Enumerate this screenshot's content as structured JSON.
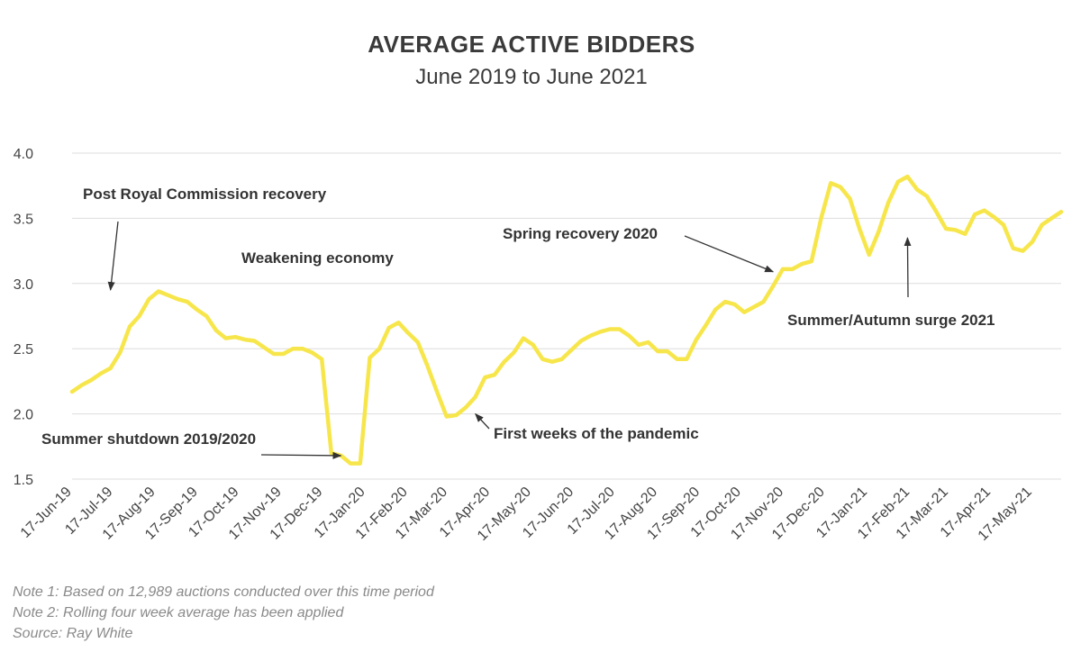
{
  "title": "AVERAGE ACTIVE BIDDERS",
  "subtitle": "June 2019 to June 2021",
  "notes": [
    "Note 1: Based on 12,989 auctions conducted over this time period",
    "Note 2: Rolling four week average has been applied",
    "Source: Ray White"
  ],
  "chart_data": {
    "type": "line",
    "title": "AVERAGE ACTIVE BIDDERS",
    "subtitle": "June 2019 to June 2021",
    "xlabel": "",
    "ylabel": "",
    "ylim": [
      1.5,
      4.0
    ],
    "yticks": [
      "1.5",
      "2.0",
      "2.5",
      "3.0",
      "3.5",
      "4.0"
    ],
    "grid": "horizontal",
    "legend": "none",
    "line_color": "#f7e64b",
    "x_ticks": [
      "17-Jun-19",
      "17-Jul-19",
      "17-Aug-19",
      "17-Sep-19",
      "17-Oct-19",
      "17-Nov-19",
      "17-Dec-19",
      "17-Jan-20",
      "17-Feb-20",
      "17-Mar-20",
      "17-Apr-20",
      "17-May-20",
      "17-Jun-20",
      "17-Jul-20",
      "17-Aug-20",
      "17-Sep-20",
      "17-Oct-20",
      "17-Nov-20",
      "17-Dec-20",
      "17-Jan-21",
      "17-Feb-21",
      "17-Mar-21",
      "17-Apr-21",
      "17-May-21"
    ],
    "x": [
      "2019-06-17",
      "2019-06-24",
      "2019-07-01",
      "2019-07-08",
      "2019-07-15",
      "2019-07-22",
      "2019-07-29",
      "2019-08-05",
      "2019-08-12",
      "2019-08-19",
      "2019-08-26",
      "2019-09-02",
      "2019-09-09",
      "2019-09-16",
      "2019-09-23",
      "2019-09-30",
      "2019-10-07",
      "2019-10-14",
      "2019-10-21",
      "2019-10-28",
      "2019-11-04",
      "2019-11-11",
      "2019-11-18",
      "2019-11-25",
      "2019-12-02",
      "2019-12-09",
      "2019-12-16",
      "2019-12-23",
      "2019-12-30",
      "2020-01-06",
      "2020-01-13",
      "2020-01-20",
      "2020-01-27",
      "2020-02-03",
      "2020-02-10",
      "2020-02-17",
      "2020-02-24",
      "2020-03-02",
      "2020-03-09",
      "2020-03-16",
      "2020-03-23",
      "2020-03-30",
      "2020-04-06",
      "2020-04-13",
      "2020-04-20",
      "2020-04-27",
      "2020-05-04",
      "2020-05-11",
      "2020-05-18",
      "2020-05-25",
      "2020-06-01",
      "2020-06-08",
      "2020-06-15",
      "2020-06-22",
      "2020-06-29",
      "2020-07-06",
      "2020-07-13",
      "2020-07-20",
      "2020-07-27",
      "2020-08-03",
      "2020-08-10",
      "2020-08-17",
      "2020-08-24",
      "2020-08-31",
      "2020-09-07",
      "2020-09-14",
      "2020-09-21",
      "2020-09-28",
      "2020-10-05",
      "2020-10-12",
      "2020-10-19",
      "2020-10-26",
      "2020-11-02",
      "2020-11-09",
      "2020-11-16",
      "2020-11-23",
      "2020-11-30",
      "2020-12-07",
      "2020-12-14",
      "2020-12-21",
      "2020-12-28",
      "2021-01-04",
      "2021-01-11",
      "2021-01-18",
      "2021-01-25",
      "2021-02-01",
      "2021-02-08",
      "2021-02-15",
      "2021-02-22",
      "2021-03-01",
      "2021-03-08",
      "2021-03-15",
      "2021-03-22",
      "2021-03-29",
      "2021-04-05",
      "2021-04-12",
      "2021-04-19",
      "2021-04-26",
      "2021-05-03",
      "2021-05-10",
      "2021-05-17",
      "2021-05-24",
      "2021-05-31",
      "2021-06-07"
    ],
    "series": [
      {
        "values": [
          2.17,
          2.22,
          2.26,
          2.31,
          2.35,
          2.47,
          2.67,
          2.75,
          2.88,
          2.94,
          2.91,
          2.88,
          2.86,
          2.8,
          2.75,
          2.64,
          2.58,
          2.59,
          2.57,
          2.56,
          2.51,
          2.46,
          2.46,
          2.5,
          2.5,
          2.47,
          2.42,
          1.7,
          1.68,
          1.62,
          1.62,
          2.43,
          2.5,
          2.66,
          2.7,
          2.62,
          2.55,
          2.37,
          2.17,
          1.98,
          1.99,
          2.05,
          2.13,
          2.28,
          2.3,
          2.4,
          2.47,
          2.58,
          2.53,
          2.42,
          2.4,
          2.42,
          2.49,
          2.56,
          2.6,
          2.63,
          2.65,
          2.65,
          2.6,
          2.53,
          2.55,
          2.48,
          2.48,
          2.42,
          2.42,
          2.57,
          2.68,
          2.8,
          2.86,
          2.84,
          2.78,
          2.82,
          2.86,
          2.98,
          3.11,
          3.11,
          3.15,
          3.17,
          3.5,
          3.77,
          3.74,
          3.65,
          3.42,
          3.22,
          3.4,
          3.62,
          3.78,
          3.82,
          3.72,
          3.67,
          3.55,
          3.42,
          3.41,
          3.38,
          3.53,
          3.56,
          3.51,
          3.45,
          3.27,
          3.25,
          3.32,
          3.45,
          3.5,
          3.55
        ]
      }
    ],
    "annotations": [
      {
        "text": "Post Royal Commission recovery",
        "arrow_to": [
          "2019-07-15",
          2.95
        ]
      },
      {
        "text": "Weakening economy"
      },
      {
        "text": "Summer shutdown 2019/2020",
        "arrow_to": [
          "2019-12-30",
          1.68
        ]
      },
      {
        "text": "First weeks of the pandemic",
        "arrow_to": [
          "2020-04-06",
          2.0
        ]
      },
      {
        "text": "Spring recovery 2020",
        "arrow_to": [
          "2020-11-09",
          3.09
        ]
      },
      {
        "text": "Summer/Autumn surge 2021",
        "arrow_to": [
          "2021-02-15",
          3.35
        ]
      }
    ]
  }
}
